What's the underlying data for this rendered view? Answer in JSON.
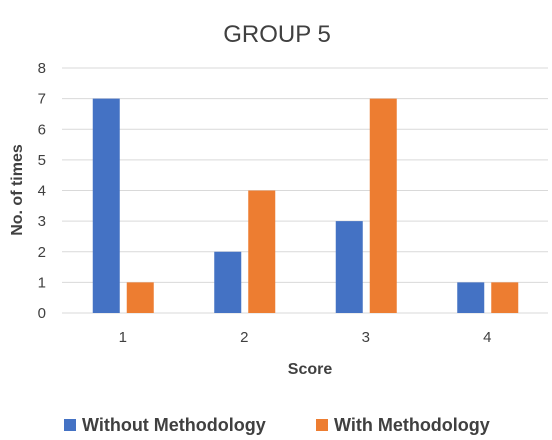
{
  "chart_data": {
    "type": "bar",
    "title": "GROUP 5",
    "xlabel": "Score",
    "ylabel": "No. of times",
    "categories": [
      "1",
      "2",
      "3",
      "4"
    ],
    "ylim": [
      0,
      8
    ],
    "yticks": [
      0,
      1,
      2,
      3,
      4,
      5,
      6,
      7,
      8
    ],
    "grid": true,
    "legend_position": "bottom",
    "series": [
      {
        "name": "Without Methodology",
        "color": "#4472C4",
        "values": [
          7,
          2,
          3,
          1
        ]
      },
      {
        "name": "With Methodology",
        "color": "#ED7D31",
        "values": [
          1,
          4,
          7,
          1
        ]
      }
    ]
  }
}
